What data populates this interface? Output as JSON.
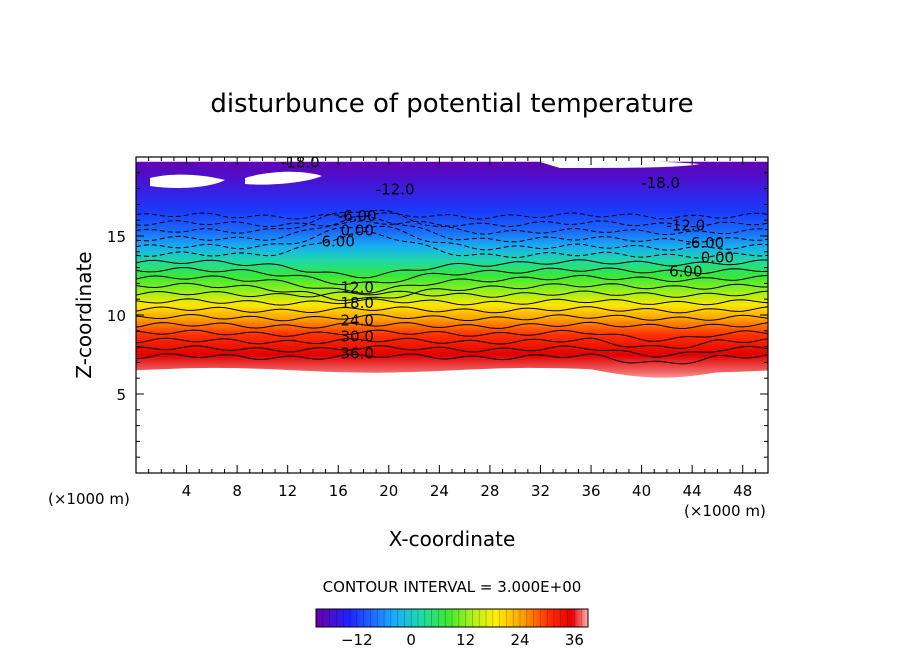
{
  "chart_data": {
    "type": "contour",
    "title": "disturbunce of potential temperature",
    "xlabel": "X-coordinate",
    "ylabel": "Z-coordinate",
    "x_unit": "(×1000 m)",
    "z_unit": "(×1000 m)",
    "xlim": [
      0,
      50
    ],
    "ylim": [
      0,
      20
    ],
    "x_ticks": [
      "4",
      "8",
      "12",
      "16",
      "20",
      "24",
      "28",
      "32",
      "36",
      "40",
      "44",
      "48"
    ],
    "y_ticks": [
      "5",
      "10",
      "15"
    ],
    "contour_interval_label": "CONTOUR INTERVAL = 3.000E+00",
    "contour_interval": 3.0,
    "colorbar": {
      "range": [
        -21,
        39
      ],
      "tick_labels": [
        "-12",
        "0",
        "12",
        "24",
        "36"
      ],
      "colors": [
        "#6a00a8",
        "#2a2aff",
        "#19a8ff",
        "#1ed8a0",
        "#39e836",
        "#b5f01a",
        "#fff000",
        "#ffa000",
        "#ff2a00",
        "#e60000",
        "#ffb0b0"
      ]
    },
    "contour_labels": [
      {
        "text": "-18.0",
        "x": 13.0,
        "z": 19.4
      },
      {
        "text": "-12.0",
        "x": 20.5,
        "z": 17.7
      },
      {
        "text": "-6.00",
        "x": 17.5,
        "z": 16.0
      },
      {
        "text": "0.00",
        "x": 17.5,
        "z": 15.1
      },
      {
        "text": "6.00",
        "x": 16.0,
        "z": 14.4
      },
      {
        "text": "-18.0",
        "x": 41.5,
        "z": 18.1
      },
      {
        "text": "-12.0",
        "x": 43.5,
        "z": 15.4
      },
      {
        "text": "-6.00",
        "x": 45.0,
        "z": 14.3
      },
      {
        "text": "0.00",
        "x": 46.0,
        "z": 13.4
      },
      {
        "text": "6.00",
        "x": 43.5,
        "z": 12.5
      },
      {
        "text": "12.0",
        "x": 17.5,
        "z": 11.5
      },
      {
        "text": "18.0",
        "x": 17.5,
        "z": 10.5
      },
      {
        "text": "24.0",
        "x": 17.5,
        "z": 9.4
      },
      {
        "text": "30.0",
        "x": 17.5,
        "z": 8.4
      },
      {
        "text": "36.0",
        "x": 17.5,
        "z": 7.3
      }
    ]
  }
}
